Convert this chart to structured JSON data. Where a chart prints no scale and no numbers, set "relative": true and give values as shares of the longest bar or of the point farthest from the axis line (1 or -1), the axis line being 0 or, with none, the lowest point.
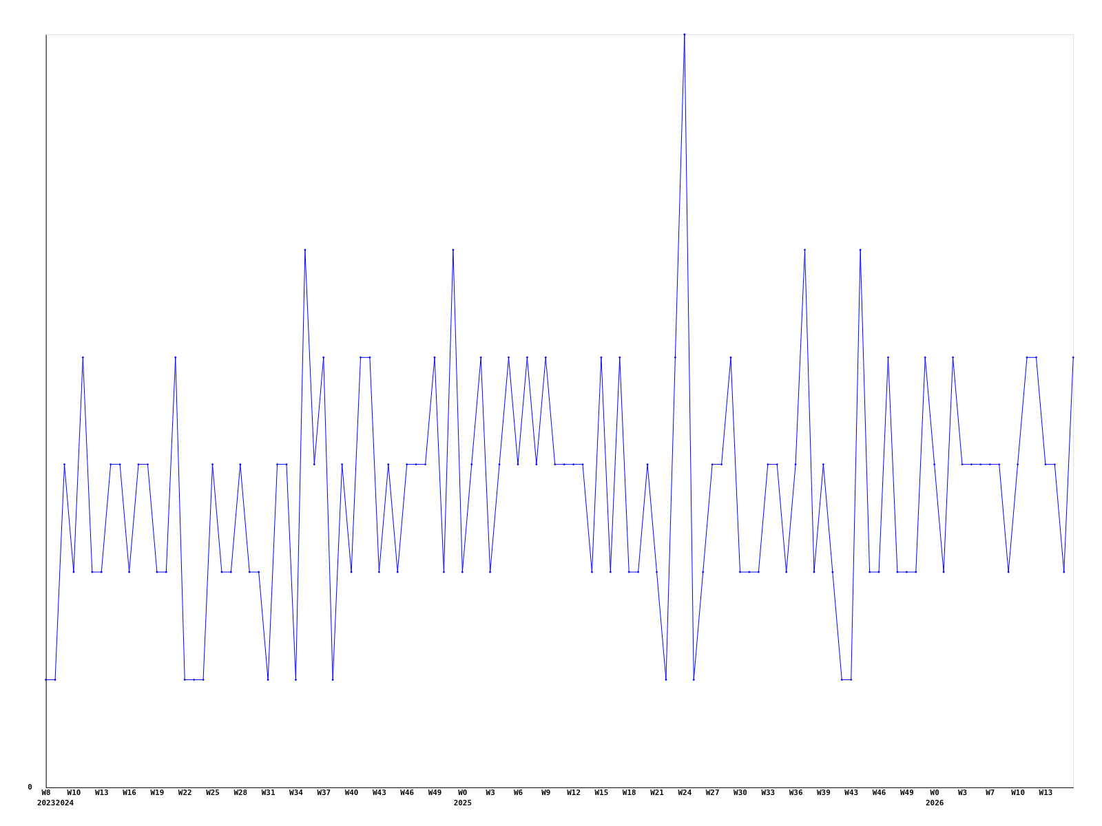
{
  "chart_data": {
    "type": "line",
    "relative": true,
    "marker": "diamond",
    "line_style": "solid",
    "grid": false,
    "annotations": [
      "0"
    ],
    "categories": [
      "W8\n2023",
      null,
      "\n2024",
      "W10",
      null,
      null,
      "W13",
      null,
      null,
      "W16",
      null,
      null,
      "W19",
      null,
      null,
      "W22",
      null,
      null,
      "W25",
      null,
      null,
      "W28",
      null,
      null,
      "W31",
      null,
      null,
      "W34",
      null,
      null,
      "W37",
      null,
      null,
      "W40",
      null,
      null,
      "W43",
      null,
      null,
      "W46",
      null,
      null,
      "W49",
      null,
      null,
      "W0\n2025",
      null,
      null,
      "W3",
      null,
      null,
      "W6",
      null,
      null,
      "W9",
      null,
      null,
      "W12",
      null,
      null,
      "W15",
      null,
      null,
      "W18",
      null,
      null,
      "W21",
      null,
      null,
      "W24",
      null,
      null,
      "W27",
      null,
      null,
      "W30",
      null,
      null,
      "W33",
      null,
      null,
      "W36",
      null,
      null,
      "W39",
      null,
      null,
      "W43",
      null,
      null,
      "W46",
      null,
      null,
      "W49",
      null,
      null,
      "W0\n2026",
      null,
      null,
      "W3",
      null,
      null,
      "W7",
      null,
      null,
      "W10",
      null,
      null,
      "W13",
      null,
      null,
      null
    ],
    "series": [
      {
        "color": "#0000ff",
        "values": [
          0.143,
          0.143,
          0.429,
          0.286,
          0.571,
          0.286,
          0.286,
          0.429,
          0.429,
          0.286,
          0.429,
          0.429,
          0.286,
          0.286,
          0.571,
          0.143,
          0.143,
          0.143,
          0.429,
          0.286,
          0.286,
          0.429,
          0.286,
          0.286,
          0.143,
          0.429,
          0.429,
          0.143,
          0.714,
          0.429,
          0.571,
          0.143,
          0.429,
          0.286,
          0.571,
          0.571,
          0.286,
          0.429,
          0.286,
          0.429,
          0.429,
          0.429,
          0.571,
          0.286,
          0.714,
          0.286,
          0.429,
          0.571,
          0.286,
          0.429,
          0.571,
          0.429,
          0.571,
          0.429,
          0.571,
          0.429,
          0.429,
          0.429,
          0.429,
          0.286,
          0.571,
          0.286,
          0.571,
          0.286,
          0.286,
          0.429,
          0.286,
          0.143,
          0.571,
          1,
          0.143,
          0.286,
          0.429,
          0.429,
          0.571,
          0.286,
          0.286,
          0.286,
          0.429,
          0.429,
          0.286,
          0.429,
          0.714,
          0.286,
          0.429,
          0.286,
          0.143,
          0.143,
          0.714,
          0.286,
          0.286,
          0.571,
          0.286,
          0.286,
          0.286,
          0.571,
          0.429,
          0.286,
          0.571,
          0.429,
          0.429,
          0.429,
          0.429,
          0.429,
          0.286,
          0.429,
          0.571,
          0.571,
          0.429,
          0.429,
          0.286,
          0.571
        ]
      }
    ]
  }
}
